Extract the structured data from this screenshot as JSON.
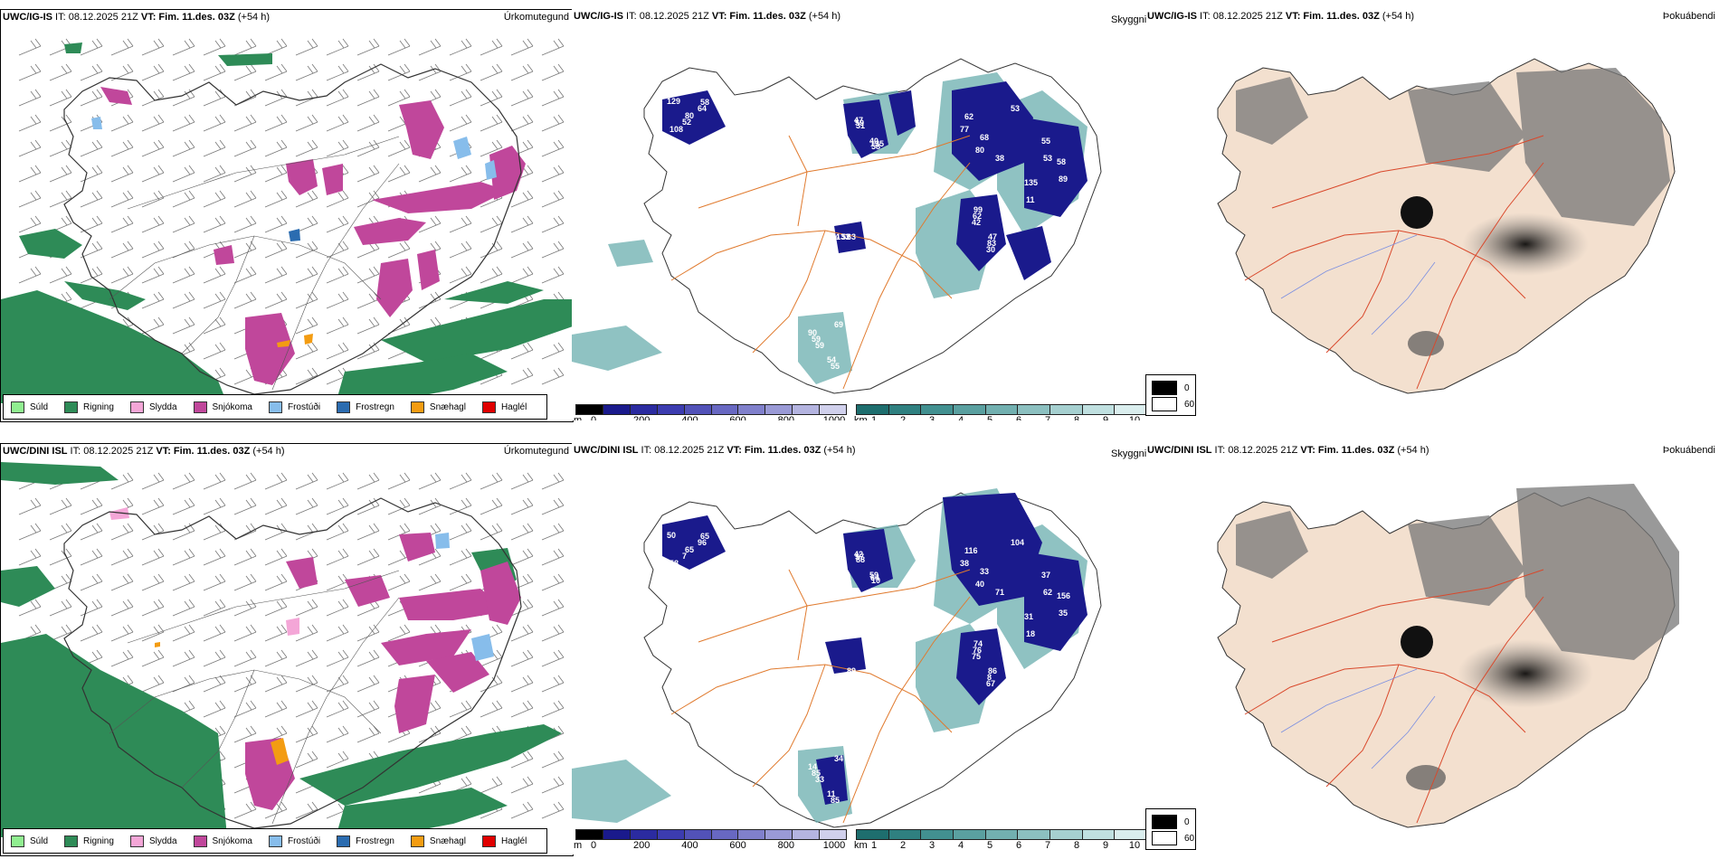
{
  "panels": [
    {
      "header": {
        "model": "UWC/IG-IS",
        "it": " IT: 08.12.2025 21Z ",
        "vt_label": "VT:",
        "vt": " Fim. 11.des. 03Z",
        "lead": " (+54 h)",
        "title": "Úrkomutegund"
      }
    },
    {
      "header": {
        "model": "UWC/IG-IS",
        "it": " IT: 08.12.2025 21Z ",
        "vt_label": "VT:",
        "vt": " Fim. 11.des. 03Z",
        "lead": " (+54 h)",
        "title": "Skyggni"
      }
    },
    {
      "header": {
        "model": "UWC/IG-IS",
        "it": " IT: 08.12.2025 21Z ",
        "vt_label": "VT:",
        "vt": " Fim. 11.des. 03Z",
        "lead": " (+54 h)",
        "title": "Þokuábendi"
      }
    },
    {
      "header": {
        "model": "UWC/DINI ISL",
        "it": " IT: 08.12.2025 21Z ",
        "vt_label": "VT:",
        "vt": " Fim. 11.des. 03Z",
        "lead": " (+54 h)",
        "title": "Úrkomutegund"
      }
    },
    {
      "header": {
        "model": "UWC/DINI ISL",
        "it": " IT: 08.12.2025 21Z ",
        "vt_label": "VT:",
        "vt": " Fim. 11.des. 03Z",
        "lead": " (+54 h)",
        "title": "Skyggni"
      }
    },
    {
      "header": {
        "model": "UWC/DINI ISL",
        "it": " IT: 08.12.2025 21Z ",
        "vt_label": "VT:",
        "vt": " Fim. 11.des. 03Z",
        "lead": " (+54 h)",
        "title": "Þokuábendi"
      }
    }
  ],
  "precip_legend": [
    {
      "label": "Súld",
      "color": "#90EE90"
    },
    {
      "label": "Rigning",
      "color": "#2E8B57"
    },
    {
      "label": "Slydda",
      "color": "#F4A6D7"
    },
    {
      "label": "Snjókoma",
      "color": "#C0479B"
    },
    {
      "label": "Frostúði",
      "color": "#87BDEB"
    },
    {
      "label": "Frostregn",
      "color": "#2B6CB0"
    },
    {
      "label": "Snæhagl",
      "color": "#F39C12"
    },
    {
      "label": "Haglél",
      "color": "#E00000"
    }
  ],
  "vis_legend": {
    "m_unit": "m",
    "m_ticks": [
      "0",
      "200",
      "400",
      "600",
      "800",
      "1000"
    ],
    "m_colors": [
      "#000000",
      "#1A1A8C",
      "#2B2BA0",
      "#3C3CB0",
      "#5252B8",
      "#6868C2",
      "#8080CC",
      "#9A9AD6",
      "#B4B4E0",
      "#D0D0EC"
    ],
    "km_unit": "km",
    "km_ticks": [
      "1",
      "2",
      "3",
      "4",
      "5",
      "6",
      "7",
      "8",
      "9",
      "10"
    ],
    "km_colors": [
      "#1E6E6E",
      "#2F8080",
      "#429090",
      "#5AA0A0",
      "#72B0B0",
      "#8CC0C0",
      "#A6D0D0",
      "#C0E0E0",
      "#DAEEEE"
    ]
  },
  "fog_legend": {
    "items": [
      {
        "label": "0",
        "color": "#000000"
      },
      {
        "label": "60",
        "color": "#ffffff"
      }
    ]
  },
  "vis_labels_top": [
    "129",
    "52",
    "64",
    "108",
    "80",
    "58",
    "47",
    "40",
    "59",
    "135",
    "31",
    "58",
    "62",
    "68",
    "38",
    "53",
    "77",
    "80",
    "53",
    "89",
    "11",
    "55",
    "58",
    "135",
    "30",
    "42",
    "83",
    "62",
    "47",
    "99",
    "69",
    "59",
    "55",
    "59",
    "54",
    "90",
    "63",
    "52",
    "133",
    "44"
  ],
  "vis_labels_bottom": [
    "50",
    "7",
    "96",
    "58",
    "65",
    "65",
    "42",
    "59",
    "57",
    "64",
    "88",
    "10",
    "116",
    "33",
    "71",
    "104",
    "38",
    "40",
    "62",
    "35",
    "18",
    "37",
    "156",
    "31",
    "67",
    "75",
    "8",
    "76",
    "86",
    "74",
    "34",
    "33",
    "85",
    "85",
    "11",
    "14",
    "89"
  ],
  "colors": {
    "rain": "#2E8B57",
    "snow": "#C0479B",
    "sleet": "#F4A6D7",
    "frz_drizzle": "#87BDEB",
    "frz_rain": "#2B6CB0",
    "graupel": "#F39C12",
    "vis_dark": "#1A1A8C",
    "vis_teal": "#6AAEAE",
    "road": "#E07A2E",
    "land_fog": "#F3E0CF",
    "river": "#7B8FE0"
  }
}
